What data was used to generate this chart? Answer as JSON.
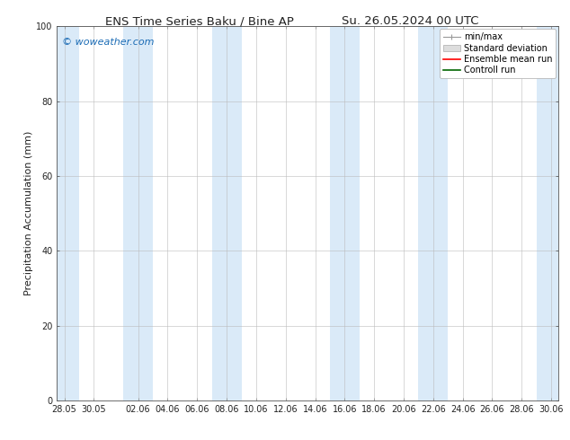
{
  "title_left": "ENS Time Series Baku / Bine AP",
  "title_right": "Su. 26.05.2024 00 UTC",
  "ylabel": "Precipitation Accumulation (mm)",
  "ylim": [
    0,
    100
  ],
  "yticks": [
    0,
    20,
    40,
    60,
    80,
    100
  ],
  "background_color": "#ffffff",
  "plot_bg_color": "#ffffff",
  "watermark": "© woweather.com",
  "watermark_color": "#1a6bb5",
  "legend_items": [
    {
      "label": "min/max",
      "color": "#aaaaaa",
      "lw": 1.0
    },
    {
      "label": "Standard deviation",
      "color": "#cccccc",
      "lw": 6
    },
    {
      "label": "Ensemble mean run",
      "color": "#ff0000",
      "lw": 1.2
    },
    {
      "label": "Controll run",
      "color": "#006600",
      "lw": 1.2
    }
  ],
  "x_tick_labels": [
    "28.05",
    "30.05",
    "02.06",
    "04.06",
    "06.06",
    "08.06",
    "10.06",
    "12.06",
    "14.06",
    "16.06",
    "18.06",
    "20.06",
    "22.06",
    "24.06",
    "26.06",
    "28.06",
    "30.06"
  ],
  "x_tick_positions": [
    0,
    2,
    5,
    7,
    9,
    11,
    13,
    15,
    17,
    19,
    21,
    23,
    25,
    27,
    29,
    31,
    33
  ],
  "x_total_days": 33,
  "shaded_bands": [
    [
      -0.5,
      1.0
    ],
    [
      4.0,
      6.0
    ],
    [
      10.0,
      12.0
    ],
    [
      18.0,
      20.0
    ],
    [
      24.0,
      26.0
    ],
    [
      32.0,
      33.5
    ]
  ],
  "shade_color": "#daeaf8",
  "grid_color": "#bbbbbb",
  "tick_color": "#222222",
  "title_fontsize": 9.5,
  "axis_label_fontsize": 8,
  "tick_fontsize": 7,
  "legend_fontsize": 7,
  "watermark_fontsize": 8
}
